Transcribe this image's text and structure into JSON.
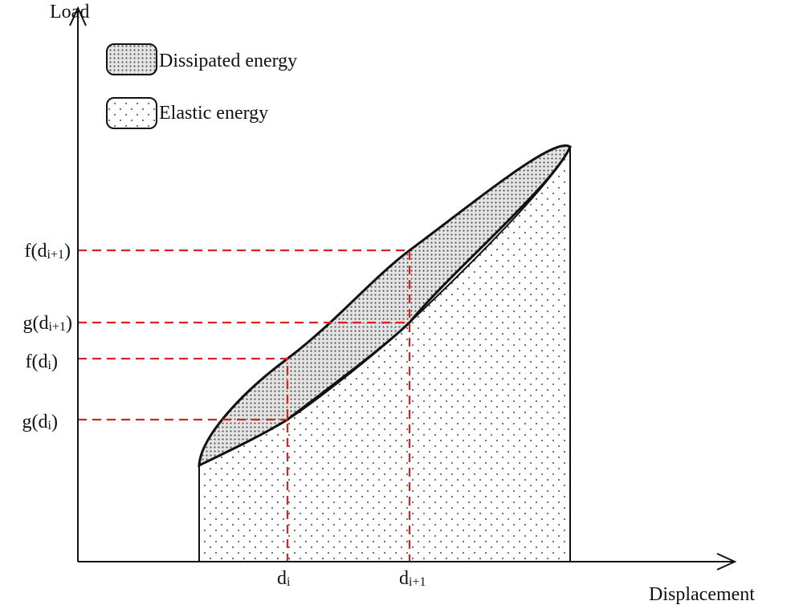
{
  "axes": {
    "y_label": "Load",
    "x_label": "Displacement"
  },
  "legend": [
    {
      "label": "Dissipated energy"
    },
    {
      "label": "Elastic energy"
    }
  ],
  "y_markers": [
    {
      "parts": [
        "f(d",
        "i+1",
        ")"
      ]
    },
    {
      "parts": [
        "g(d",
        "i+1",
        ")"
      ]
    },
    {
      "parts": [
        "f(d",
        "i",
        ")"
      ]
    },
    {
      "parts": [
        "g(d",
        "i",
        ")"
      ]
    }
  ],
  "x_markers": [
    {
      "parts": [
        "d",
        "i"
      ]
    },
    {
      "parts": [
        "d",
        "i+1"
      ]
    }
  ]
}
